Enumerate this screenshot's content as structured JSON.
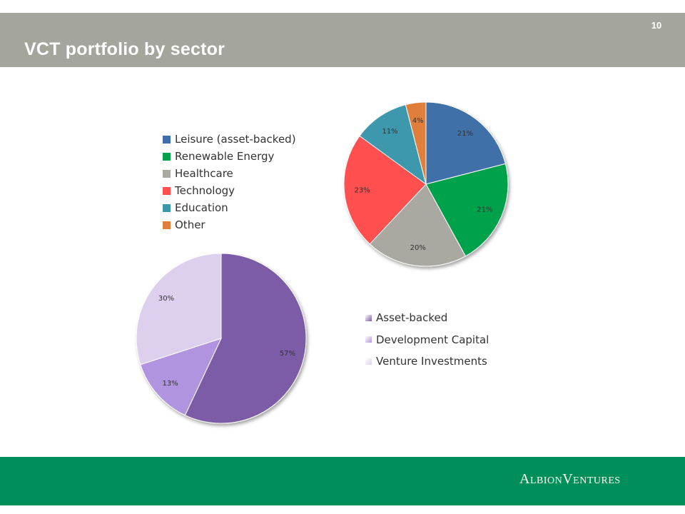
{
  "header": {
    "title": "VCT portfolio by sector",
    "page_number": "10"
  },
  "footer": {
    "brand": "AlbionVentures"
  },
  "colors": {
    "header_bg": "#a4a69d",
    "footer_bg": "#008e5b",
    "leisure": "#3f6fa8",
    "renewable": "#02a14b",
    "healthcare": "#a9a9a1",
    "technology": "#ff4f4f",
    "education": "#3c98ad",
    "other": "#e07f3b",
    "asset_backed": "#7c5ba6",
    "development_capital": "#b194e0",
    "venture_investments": "#dcd0ee"
  },
  "chart_data": [
    {
      "type": "pie",
      "title": "",
      "categories": [
        "Leisure (asset-backed)",
        "Renewable Energy",
        "Healthcare",
        "Technology",
        "Education",
        "Other"
      ],
      "values": [
        21,
        21,
        20,
        23,
        11,
        4
      ],
      "labels": [
        "21%",
        "21%",
        "20%",
        "23%",
        "11%",
        "4%"
      ],
      "colors": [
        "#3f6fa8",
        "#02a14b",
        "#a9a9a1",
        "#ff4f4f",
        "#3c98ad",
        "#e07f3b"
      ],
      "legend_position": "left"
    },
    {
      "type": "pie",
      "title": "",
      "categories": [
        "Asset-backed",
        "Development Capital",
        "Venture Investments"
      ],
      "values": [
        57,
        13,
        30
      ],
      "labels": [
        "57%",
        "13%",
        "30%"
      ],
      "colors": [
        "#7c5ba6",
        "#b194e0",
        "#dcd0ee"
      ],
      "legend_position": "right"
    }
  ]
}
